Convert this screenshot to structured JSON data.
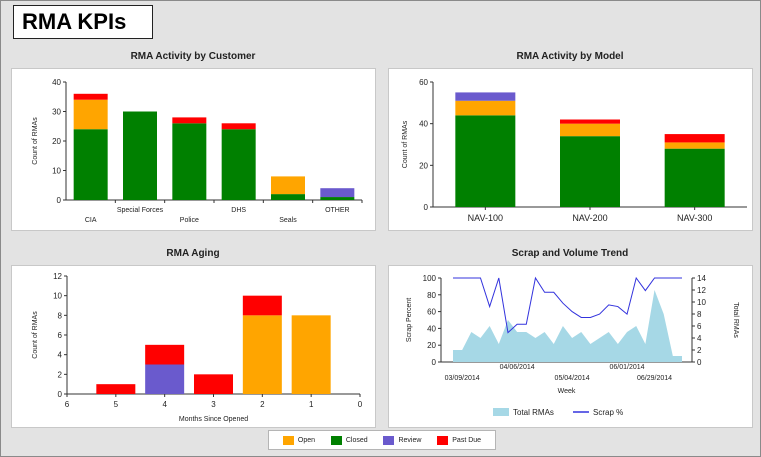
{
  "page": {
    "title": "RMA KPIs"
  },
  "colors": {
    "open": "#ffa500",
    "closed": "#008000",
    "review": "#6a5acd",
    "pastdue": "#ff0000",
    "area": "#a6d8e6",
    "line": "#3333dd"
  },
  "legend": [
    {
      "label": "Open",
      "color": "#ffa500"
    },
    {
      "label": "Closed",
      "color": "#008000"
    },
    {
      "label": "Review",
      "color": "#6a5acd"
    },
    {
      "label": "Past Due",
      "color": "#ff0000"
    }
  ],
  "chart_data": [
    {
      "id": "customer",
      "type": "bar",
      "title": "RMA Activity by Customer",
      "ylabel": "Count of RMAs",
      "xlabel": "",
      "ylim": [
        0,
        40
      ],
      "yticks": [
        0,
        10,
        20,
        30,
        40
      ],
      "categories": [
        "CIA",
        "Special Forces",
        "Police",
        "DHS",
        "Seals",
        "OTHER"
      ],
      "series": [
        {
          "name": "Closed",
          "values": [
            24,
            30,
            26,
            24,
            2,
            1
          ]
        },
        {
          "name": "Open",
          "values": [
            10,
            0,
            0,
            0,
            6,
            0
          ]
        },
        {
          "name": "Review",
          "values": [
            0,
            0,
            0,
            0,
            0,
            3
          ]
        },
        {
          "name": "Past Due",
          "values": [
            2,
            0,
            2,
            2,
            0,
            0
          ]
        }
      ]
    },
    {
      "id": "model",
      "type": "bar",
      "title": "RMA Activity by Model",
      "ylabel": "Count of RMAs",
      "xlabel": "",
      "ylim": [
        0,
        60
      ],
      "yticks": [
        0,
        20,
        40,
        60
      ],
      "categories": [
        "NAV-100",
        "NAV-200",
        "NAV-300"
      ],
      "series": [
        {
          "name": "Closed",
          "values": [
            44,
            34,
            28
          ]
        },
        {
          "name": "Open",
          "values": [
            7,
            6,
            3
          ]
        },
        {
          "name": "Review",
          "values": [
            4,
            0,
            0
          ]
        },
        {
          "name": "Past Due",
          "values": [
            0,
            2,
            4
          ]
        }
      ]
    },
    {
      "id": "aging",
      "type": "bar",
      "title": "RMA Aging",
      "ylabel": "Count of RMAs",
      "xlabel": "Months Since Opened",
      "ylim": [
        0,
        12
      ],
      "yticks": [
        0,
        2,
        4,
        6,
        8,
        10,
        12
      ],
      "xlim": [
        6,
        0
      ],
      "xticks": [
        6,
        5,
        4,
        3,
        2,
        1,
        0
      ],
      "categories": [
        5,
        4,
        3,
        2,
        1
      ],
      "series": [
        {
          "name": "Closed",
          "values": [
            0,
            0,
            0,
            0,
            0
          ]
        },
        {
          "name": "Open",
          "values": [
            0,
            0,
            0,
            8,
            8
          ]
        },
        {
          "name": "Review",
          "values": [
            0,
            3,
            0,
            0,
            0
          ]
        },
        {
          "name": "Past Due",
          "values": [
            1,
            2,
            2,
            2,
            0
          ]
        }
      ]
    },
    {
      "id": "scrap",
      "type": "area",
      "title": "Scrap and Volume Trend",
      "xlabel": "Week",
      "ylabel": "Scrap Percent",
      "y2label": "Total RMAs",
      "ylim": [
        0,
        100
      ],
      "yticks": [
        0,
        20,
        40,
        60,
        80,
        100
      ],
      "y2lim": [
        0,
        14
      ],
      "y2ticks": [
        0,
        2,
        4,
        6,
        8,
        10,
        12,
        14
      ],
      "xticks_top": [
        "04/06/2014",
        "06/01/2014"
      ],
      "xticks_bottom": [
        "03/09/2014",
        "05/04/2014",
        "06/29/2014"
      ],
      "series": [
        {
          "name": "Total RMAs",
          "axis": "y2",
          "values": [
            2,
            2,
            5,
            4,
            6,
            3,
            7,
            5,
            5,
            4,
            5,
            3,
            6,
            4,
            5,
            3,
            4,
            5,
            3,
            5,
            6,
            3,
            12,
            8,
            1,
            1
          ]
        },
        {
          "name": "Scrap %",
          "axis": "y",
          "values": [
            100,
            100,
            100,
            100,
            66,
            100,
            35,
            45,
            45,
            100,
            83,
            83,
            70,
            60,
            53,
            53,
            57,
            68,
            66,
            57,
            100,
            85,
            100,
            100,
            100,
            100
          ]
        }
      ]
    }
  ]
}
